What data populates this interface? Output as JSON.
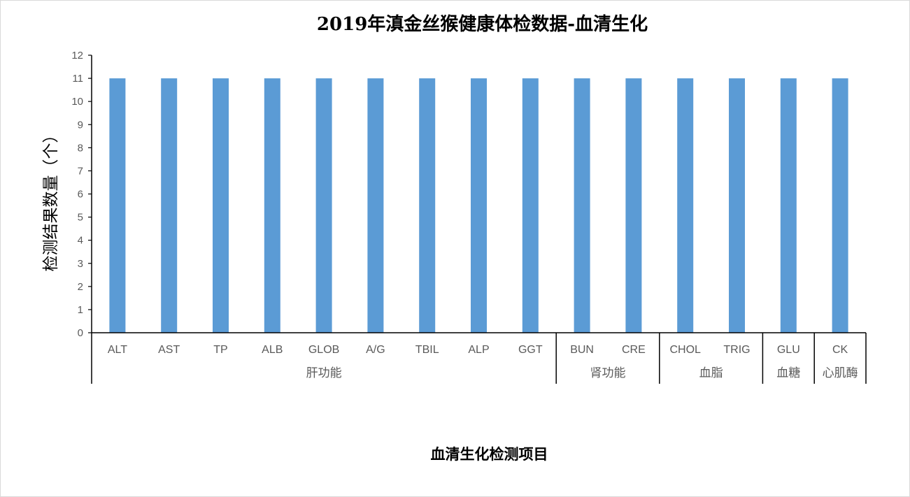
{
  "chart_data": {
    "type": "bar",
    "title": "2019年滇金丝猴健康体检数据-血清生化",
    "xlabel": "血清生化检测项目",
    "ylabel": "检测结果数量（个）",
    "ylim": [
      0,
      12
    ],
    "yticks": [
      0,
      1,
      2,
      3,
      4,
      5,
      6,
      7,
      8,
      9,
      10,
      11,
      12
    ],
    "categories": [
      "ALT",
      "AST",
      "TP",
      "ALB",
      "GLOB",
      "A/G",
      "TBIL",
      "ALP",
      "GGT",
      "BUN",
      "CRE",
      "CHOL",
      "TRIG",
      "GLU",
      "CK"
    ],
    "values": [
      11,
      11,
      11,
      11,
      11,
      11,
      11,
      11,
      11,
      11,
      11,
      11,
      11,
      11,
      11
    ],
    "groups": [
      {
        "label": "肝功能",
        "count": 9
      },
      {
        "label": "肾功能",
        "count": 2
      },
      {
        "label": "血脂",
        "count": 2
      },
      {
        "label": "血糖",
        "count": 1
      },
      {
        "label": "心肌酶",
        "count": 1
      }
    ],
    "bar_color": "#5b9bd5",
    "axis_color": "#000000",
    "grid": false,
    "legend": "none"
  }
}
